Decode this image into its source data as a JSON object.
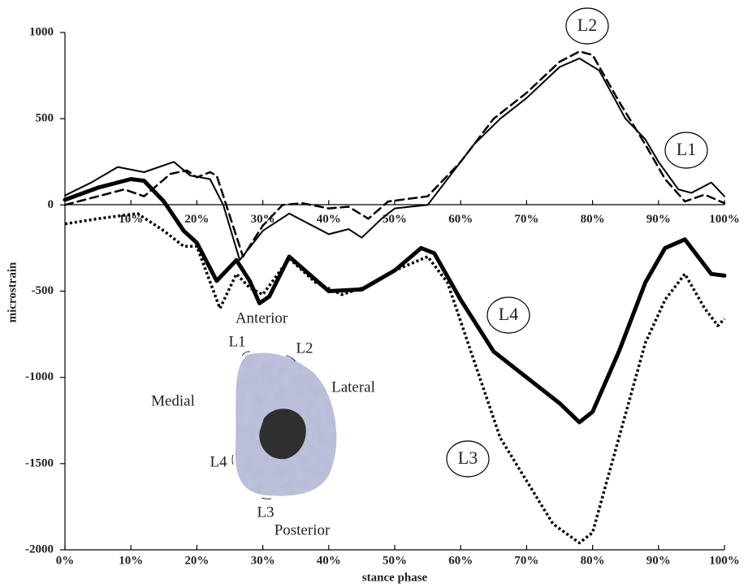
{
  "chart_data": {
    "type": "line",
    "y_label": "microstrain",
    "x_label": "stance phase",
    "xlim": [
      0,
      100
    ],
    "ylim": [
      -2000,
      1000
    ],
    "xticks": [
      {
        "value": 0,
        "label": "0%"
      },
      {
        "value": 10,
        "label": "10%"
      },
      {
        "value": 20,
        "label": "20%"
      },
      {
        "value": 30,
        "label": "30%"
      },
      {
        "value": 40,
        "label": "40%"
      },
      {
        "value": 50,
        "label": "50%"
      },
      {
        "value": 60,
        "label": "60%"
      },
      {
        "value": 70,
        "label": "70%"
      },
      {
        "value": 80,
        "label": "80%"
      },
      {
        "value": 90,
        "label": "90%"
      },
      {
        "value": 100,
        "label": "100%"
      }
    ],
    "yticks": [
      1000,
      500,
      0,
      -500,
      -1000,
      -1500,
      -2000
    ],
    "series": [
      {
        "name": "L1",
        "color": "#000000",
        "style": "solid",
        "width": 2,
        "x": [
          0,
          4,
          8,
          12,
          16.5,
          19,
          22,
          24,
          26.5,
          30,
          34,
          38,
          40,
          43,
          45,
          48,
          50,
          55,
          58,
          62,
          66,
          70,
          75,
          78,
          81,
          85,
          88,
          90,
          93,
          95,
          98,
          100
        ],
        "values": [
          55,
          130,
          220,
          190,
          250,
          170,
          150,
          0,
          -320,
          -150,
          -50,
          -130,
          -170,
          -140,
          -190,
          -80,
          -20,
          0,
          150,
          350,
          500,
          620,
          800,
          850,
          780,
          500,
          380,
          250,
          90,
          70,
          130,
          50
        ]
      },
      {
        "name": "L2",
        "color": "#000000",
        "style": "dashed",
        "width": 2.5,
        "x": [
          0,
          5,
          9,
          12,
          16,
          18.5,
          20,
          22,
          23,
          27,
          30,
          33,
          36,
          40,
          43,
          46,
          49,
          55,
          60,
          65,
          70,
          75,
          78,
          80,
          84,
          88,
          91,
          94,
          97,
          100
        ],
        "values": [
          0,
          50,
          90,
          50,
          180,
          200,
          160,
          190,
          170,
          -300,
          -120,
          0,
          10,
          -20,
          -10,
          -80,
          20,
          50,
          250,
          500,
          650,
          830,
          890,
          870,
          600,
          350,
          150,
          20,
          60,
          10
        ]
      },
      {
        "name": "L3",
        "color": "#000000",
        "style": "dotted",
        "width": 3.5,
        "x": [
          0,
          5,
          11,
          15,
          18,
          20,
          23.5,
          26,
          28,
          30,
          34,
          38,
          42,
          46,
          50,
          55,
          58,
          62,
          66,
          70,
          74,
          78,
          80,
          84,
          88,
          91,
          94,
          97,
          99,
          100
        ],
        "values": [
          -110,
          -80,
          -50,
          -150,
          -240,
          -240,
          -600,
          -400,
          -480,
          -520,
          -310,
          -450,
          -520,
          -470,
          -380,
          -300,
          -450,
          -900,
          -1350,
          -1600,
          -1850,
          -1960,
          -1900,
          -1350,
          -800,
          -550,
          -400,
          -600,
          -700,
          -660
        ]
      },
      {
        "name": "L4",
        "color": "#000000",
        "style": "solid",
        "width": 5,
        "x": [
          0,
          5,
          10,
          12,
          15,
          18,
          20,
          23,
          26,
          28,
          29.5,
          31,
          34,
          37,
          40,
          45,
          50,
          54,
          56,
          60,
          65,
          70,
          75,
          78,
          80,
          84,
          88,
          91,
          94,
          98,
          100
        ],
        "values": [
          30,
          100,
          150,
          140,
          20,
          -150,
          -220,
          -440,
          -320,
          -440,
          -570,
          -530,
          -300,
          -400,
          -500,
          -490,
          -380,
          -250,
          -280,
          -550,
          -850,
          -1000,
          -1150,
          -1260,
          -1200,
          -850,
          -450,
          -250,
          -200,
          -400,
          -410
        ]
      }
    ],
    "inset": {
      "anterior": "Anterior",
      "posterior": "Posterior",
      "medial": "Medial",
      "lateral": "Lateral",
      "sites": [
        "L1",
        "L2",
        "L3",
        "L4"
      ]
    }
  }
}
